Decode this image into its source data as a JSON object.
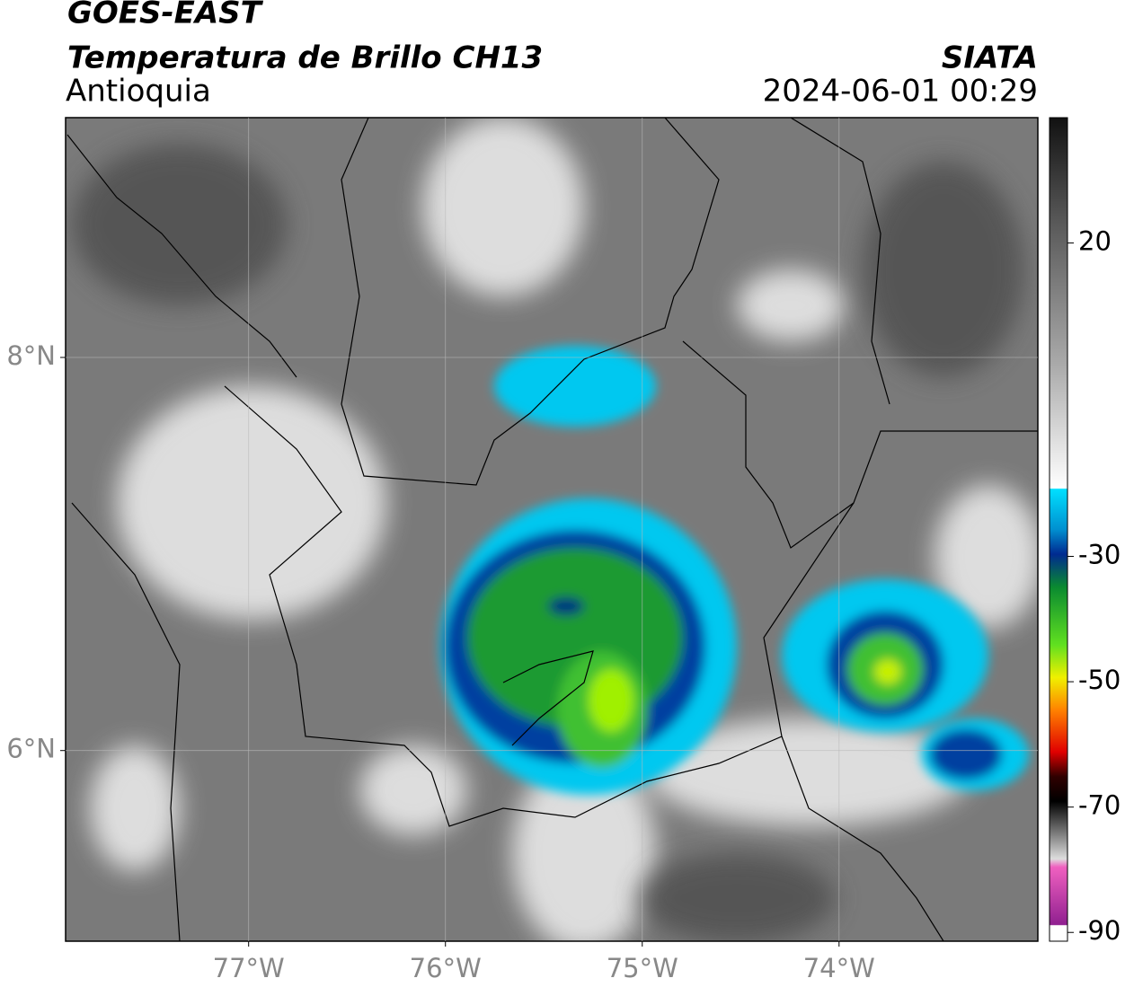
{
  "header": {
    "title": "GOES-EAST",
    "subtitle": "Temperatura de Brillo CH13",
    "region": "Antioquia",
    "source": "SIATA",
    "datetime": "2024-06-01 00:29"
  },
  "map": {
    "lonlim": [
      -77.93,
      -72.99
    ],
    "latlim": [
      5.03,
      9.22
    ],
    "xticks": [
      {
        "value": -77,
        "label": "77°W"
      },
      {
        "value": -76,
        "label": "76°W"
      },
      {
        "value": -75,
        "label": "75°W"
      },
      {
        "value": -74,
        "label": "74°W"
      }
    ],
    "yticks": [
      {
        "value": 8,
        "label": "8°N"
      },
      {
        "value": 6,
        "label": "6°N"
      }
    ],
    "grid": true
  },
  "colorbar": {
    "lim": [
      -91.4,
      40
    ],
    "ticks": [
      20,
      -30,
      -50,
      -70,
      -90
    ]
  }
}
